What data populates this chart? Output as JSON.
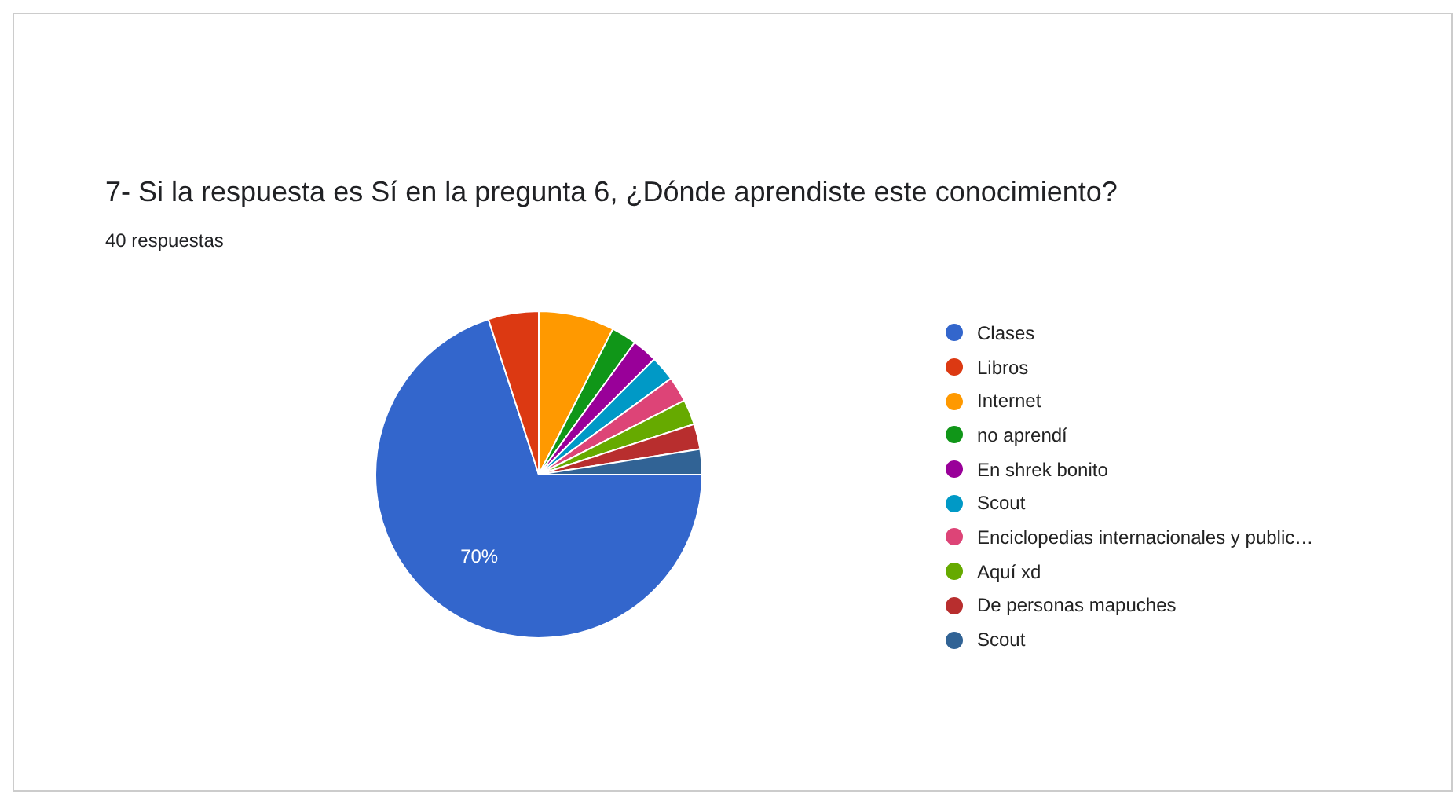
{
  "chart_data": {
    "type": "pie",
    "title": "7- Si la respuesta es Sí en la pregunta 6, ¿Dónde aprendiste este conocimiento?",
    "subtitle": "40 respuestas",
    "categories": [
      "Clases",
      "Libros",
      "Internet",
      "no aprendí",
      "En shrek bonito",
      "Scout",
      "Enciclopedias internacionales y public…",
      "Aquí xd",
      "De personas mapuches",
      "Scout"
    ],
    "values": [
      70,
      5,
      7.5,
      2.5,
      2.5,
      2.5,
      2.5,
      2.5,
      2.5,
      2.5
    ],
    "colors": [
      "#3366cc",
      "#dc3912",
      "#ff9900",
      "#109618",
      "#990099",
      "#0099c6",
      "#dd4477",
      "#66aa00",
      "#b82e2e",
      "#316395"
    ],
    "value_labels": [
      "70%",
      null,
      null,
      null,
      null,
      null,
      null,
      null,
      null,
      null
    ],
    "legend": "right"
  }
}
